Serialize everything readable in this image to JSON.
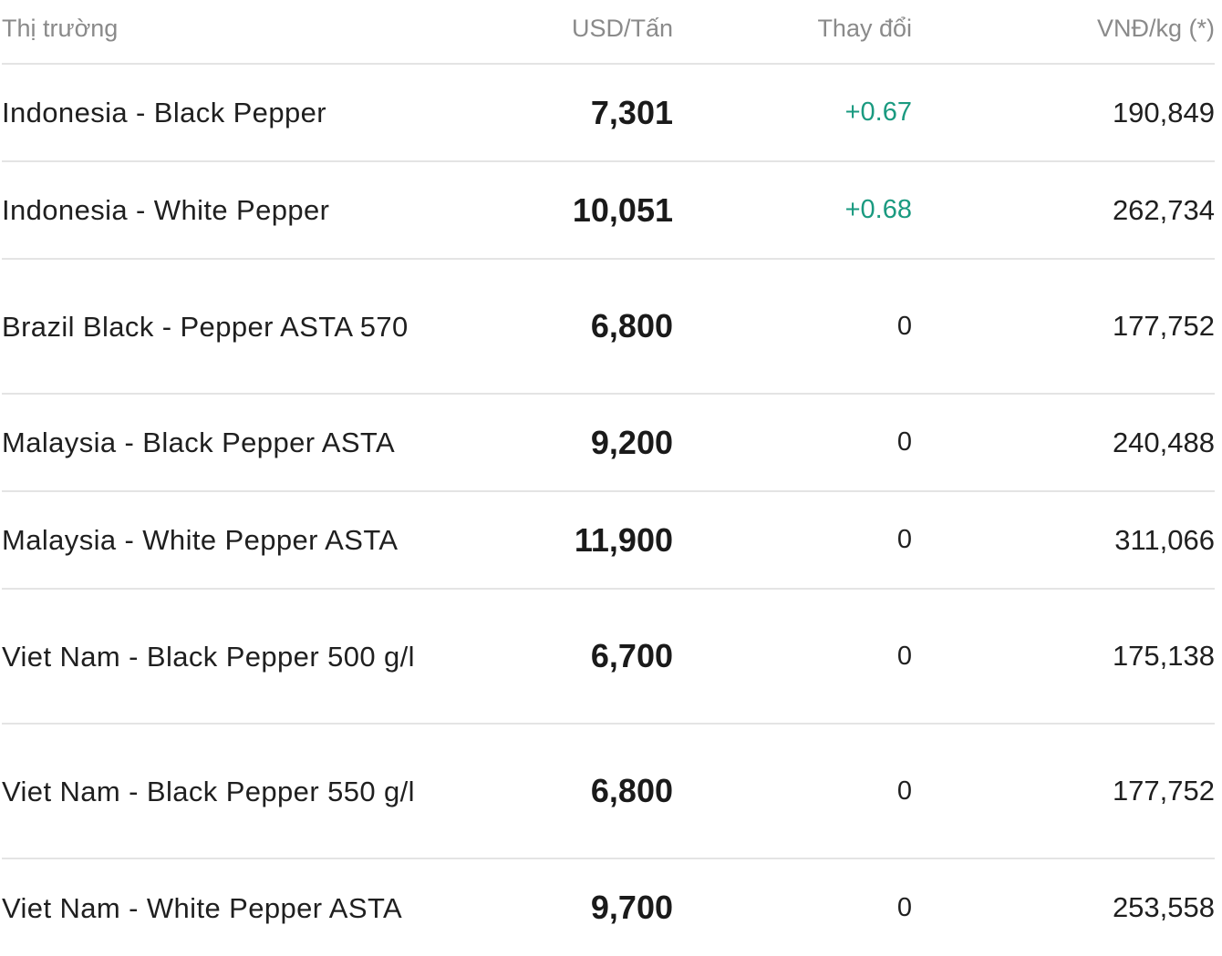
{
  "table": {
    "headers": {
      "market": "Thị trường",
      "usd_per_ton": "USD/Tấn",
      "change": "Thay đổi",
      "vnd_per_kg": "VNĐ/kg (*)"
    },
    "colors": {
      "positive_change": "#1a9a80",
      "header_text": "#8a8a8a",
      "divider": "#e4e4e4"
    },
    "rows": [
      {
        "market": "Indonesia - Black Pepper",
        "usd": "7,301",
        "change": "+0.67",
        "vnd": "190,849"
      },
      {
        "market": "Indonesia - White Pepper",
        "usd": "10,051",
        "change": "+0.68",
        "vnd": "262,734"
      },
      {
        "market": "Brazil Black - Pepper ASTA 570",
        "usd": "6,800",
        "change": "0",
        "vnd": "177,752"
      },
      {
        "market": "Malaysia - Black Pepper ASTA",
        "usd": "9,200",
        "change": "0",
        "vnd": "240,488"
      },
      {
        "market": "Malaysia - White Pepper ASTA",
        "usd": "11,900",
        "change": "0",
        "vnd": "311,066"
      },
      {
        "market": "Viet Nam - Black Pepper 500 g/l",
        "usd": "6,700",
        "change": "0",
        "vnd": "175,138"
      },
      {
        "market": "Viet Nam - Black Pepper 550 g/l",
        "usd": "6,800",
        "change": "0",
        "vnd": "177,752"
      },
      {
        "market": "Viet Nam - White Pepper ASTA",
        "usd": "9,700",
        "change": "0",
        "vnd": "253,558"
      }
    ]
  }
}
